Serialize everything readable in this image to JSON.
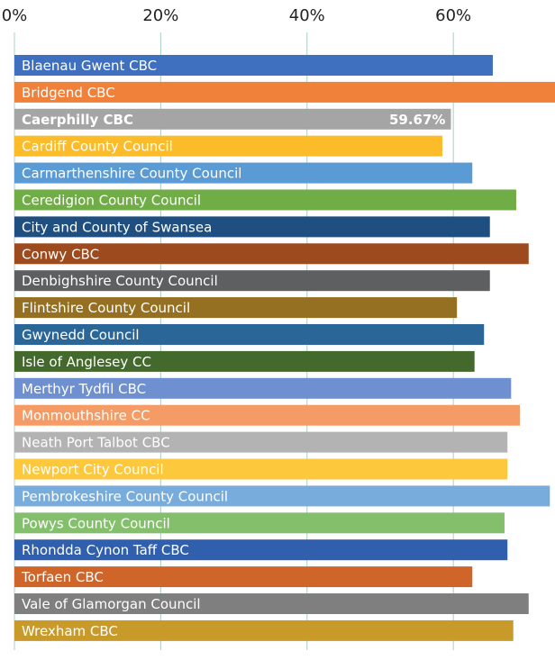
{
  "chart_data": {
    "type": "barh",
    "categories": [
      "Blaenau Gwent CBC",
      "Bridgend CBC",
      "Caerphilly CBC",
      "Cardiff County Council",
      "Carmarthenshire County Council",
      "Ceredigion County Council",
      "City and County of Swansea",
      "Conwy CBC",
      "Denbighshire County Council",
      "Flintshire County Council",
      "Gwynedd Council",
      "Isle of Anglesey CC",
      "Merthyr Tydfil CBC",
      "Monmouthshire CC",
      "Neath Port Talbot CBC",
      "Newport City Council",
      "Pembrokeshire County Council",
      "Powys County Council",
      "Rhondda Cynon Taff CBC",
      "Torfaen CBC",
      "Vale of Glamorgan Council",
      "Wrexham CBC"
    ],
    "values": [
      65.4,
      74,
      59.67,
      58.5,
      62.6,
      68.6,
      65.0,
      70.3,
      65.0,
      60.5,
      64.2,
      62.9,
      67.9,
      69.1,
      67.4,
      67.4,
      73.2,
      67.0,
      67.4,
      62.6,
      70.3,
      68.2
    ],
    "value_labels": [
      null,
      null,
      "59.67%",
      null,
      null,
      null,
      null,
      null,
      null,
      null,
      null,
      null,
      null,
      null,
      null,
      null,
      null,
      null,
      null,
      null,
      null,
      null
    ],
    "colors": [
      "#3f6fbf",
      "#f0813a",
      "#a5a5a5",
      "#fcbc2a",
      "#5b9bd5",
      "#70ad47",
      "#1f4e80",
      "#9e4a1f",
      "#5d5f60",
      "#967022",
      "#2a6798",
      "#44692c",
      "#6e8fd0",
      "#f59b65",
      "#b3b3b3",
      "#fdc83c",
      "#78acdc",
      "#84c06c",
      "#2f5fad",
      "#d0652a",
      "#7f7f7f",
      "#c89a2a"
    ],
    "xlim": [
      0,
      73.9
    ],
    "xticks": [
      {
        "value": 0,
        "label": "0%"
      },
      {
        "value": 20,
        "label": "20%"
      },
      {
        "value": 40,
        "label": "40%"
      },
      {
        "value": 60,
        "label": "60%"
      }
    ],
    "grid": true
  }
}
